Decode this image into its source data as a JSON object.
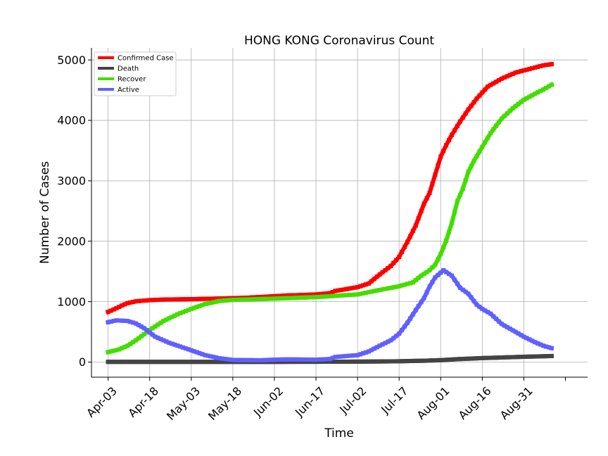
{
  "chart_data": {
    "type": "line",
    "title": "HONG KONG Coronavirus Count",
    "xlabel": "Time",
    "ylabel": "Number of Cases",
    "xlim": [
      "2020-03-28",
      "2020-09-23"
    ],
    "ylim": [
      -250,
      5200
    ],
    "grid": true,
    "legend_position": "top-left",
    "x_ticks": [
      "Apr-03",
      "Apr-18",
      "May-03",
      "May-18",
      "Jun-02",
      "Jun-17",
      "Jul-02",
      "Jul-17",
      "Aug-01",
      "Aug-16",
      "Aug-31"
    ],
    "y_ticks": [
      0,
      1000,
      2000,
      3000,
      4000,
      5000
    ],
    "series": [
      {
        "name": "Confirmed Case",
        "color": "#ff0000",
        "points": [
          [
            "2020-04-03",
            830
          ],
          [
            "2020-04-05",
            870
          ],
          [
            "2020-04-08",
            935
          ],
          [
            "2020-04-10",
            975
          ],
          [
            "2020-04-13",
            1005
          ],
          [
            "2020-04-18",
            1025
          ],
          [
            "2020-04-23",
            1035
          ],
          [
            "2020-05-03",
            1042
          ],
          [
            "2020-05-13",
            1052
          ],
          [
            "2020-05-23",
            1065
          ],
          [
            "2020-06-02",
            1090
          ],
          [
            "2020-06-07",
            1103
          ],
          [
            "2020-06-12",
            1110
          ],
          [
            "2020-06-17",
            1120
          ],
          [
            "2020-06-22",
            1140
          ],
          [
            "2020-06-24",
            1178
          ],
          [
            "2020-06-27",
            1200
          ],
          [
            "2020-07-02",
            1240
          ],
          [
            "2020-07-06",
            1300
          ],
          [
            "2020-07-10",
            1450
          ],
          [
            "2020-07-14",
            1590
          ],
          [
            "2020-07-17",
            1740
          ],
          [
            "2020-07-20",
            1990
          ],
          [
            "2020-07-23",
            2260
          ],
          [
            "2020-07-26",
            2620
          ],
          [
            "2020-07-28",
            2800
          ],
          [
            "2020-07-30",
            3100
          ],
          [
            "2020-08-01",
            3400
          ],
          [
            "2020-08-03",
            3590
          ],
          [
            "2020-08-05",
            3760
          ],
          [
            "2020-08-08",
            3980
          ],
          [
            "2020-08-11",
            4180
          ],
          [
            "2020-08-14",
            4360
          ],
          [
            "2020-08-18",
            4560
          ],
          [
            "2020-08-23",
            4690
          ],
          [
            "2020-08-28",
            4790
          ],
          [
            "2020-09-02",
            4850
          ],
          [
            "2020-09-07",
            4910
          ],
          [
            "2020-09-10",
            4930
          ]
        ]
      },
      {
        "name": "Death",
        "color": "#444444",
        "points": [
          [
            "2020-04-03",
            4
          ],
          [
            "2020-05-03",
            4
          ],
          [
            "2020-06-02",
            4
          ],
          [
            "2020-07-02",
            7
          ],
          [
            "2020-07-17",
            13
          ],
          [
            "2020-07-27",
            24
          ],
          [
            "2020-08-01",
            32
          ],
          [
            "2020-08-07",
            48
          ],
          [
            "2020-08-16",
            66
          ],
          [
            "2020-08-23",
            76
          ],
          [
            "2020-08-31",
            88
          ],
          [
            "2020-09-10",
            100
          ]
        ]
      },
      {
        "name": "Recover",
        "color": "#44dd00",
        "points": [
          [
            "2020-04-03",
            165
          ],
          [
            "2020-04-07",
            210
          ],
          [
            "2020-04-10",
            270
          ],
          [
            "2020-04-13",
            360
          ],
          [
            "2020-04-18",
            530
          ],
          [
            "2020-04-23",
            680
          ],
          [
            "2020-04-28",
            790
          ],
          [
            "2020-05-03",
            880
          ],
          [
            "2020-05-08",
            960
          ],
          [
            "2020-05-13",
            1010
          ],
          [
            "2020-05-18",
            1030
          ],
          [
            "2020-06-02",
            1050
          ],
          [
            "2020-06-17",
            1075
          ],
          [
            "2020-07-02",
            1120
          ],
          [
            "2020-07-09",
            1185
          ],
          [
            "2020-07-17",
            1255
          ],
          [
            "2020-07-22",
            1320
          ],
          [
            "2020-07-25",
            1430
          ],
          [
            "2020-07-28",
            1520
          ],
          [
            "2020-07-30",
            1610
          ],
          [
            "2020-08-01",
            1790
          ],
          [
            "2020-08-03",
            2010
          ],
          [
            "2020-08-05",
            2300
          ],
          [
            "2020-08-07",
            2660
          ],
          [
            "2020-08-09",
            2870
          ],
          [
            "2020-08-11",
            3150
          ],
          [
            "2020-08-13",
            3330
          ],
          [
            "2020-08-16",
            3560
          ],
          [
            "2020-08-19",
            3790
          ],
          [
            "2020-08-23",
            4030
          ],
          [
            "2020-08-27",
            4200
          ],
          [
            "2020-08-31",
            4340
          ],
          [
            "2020-09-04",
            4440
          ],
          [
            "2020-09-07",
            4510
          ],
          [
            "2020-09-10",
            4590
          ]
        ]
      },
      {
        "name": "Active",
        "color": "#6060ff",
        "points": [
          [
            "2020-04-03",
            660
          ],
          [
            "2020-04-06",
            690
          ],
          [
            "2020-04-10",
            680
          ],
          [
            "2020-04-13",
            640
          ],
          [
            "2020-04-16",
            560
          ],
          [
            "2020-04-20",
            420
          ],
          [
            "2020-04-25",
            320
          ],
          [
            "2020-05-03",
            195
          ],
          [
            "2020-05-08",
            115
          ],
          [
            "2020-05-13",
            65
          ],
          [
            "2020-05-18",
            35
          ],
          [
            "2020-05-28",
            30
          ],
          [
            "2020-06-02",
            40
          ],
          [
            "2020-06-07",
            45
          ],
          [
            "2020-06-17",
            40
          ],
          [
            "2020-06-22",
            50
          ],
          [
            "2020-06-24",
            85
          ],
          [
            "2020-07-02",
            115
          ],
          [
            "2020-07-06",
            175
          ],
          [
            "2020-07-10",
            270
          ],
          [
            "2020-07-14",
            360
          ],
          [
            "2020-07-17",
            470
          ],
          [
            "2020-07-20",
            650
          ],
          [
            "2020-07-23",
            860
          ],
          [
            "2020-07-26",
            1060
          ],
          [
            "2020-07-28",
            1250
          ],
          [
            "2020-07-30",
            1400
          ],
          [
            "2020-08-02",
            1520
          ],
          [
            "2020-08-05",
            1430
          ],
          [
            "2020-08-08",
            1230
          ],
          [
            "2020-08-11",
            1130
          ],
          [
            "2020-08-14",
            950
          ],
          [
            "2020-08-16",
            880
          ],
          [
            "2020-08-19",
            800
          ],
          [
            "2020-08-23",
            630
          ],
          [
            "2020-08-28",
            500
          ],
          [
            "2020-08-31",
            420
          ],
          [
            "2020-09-04",
            330
          ],
          [
            "2020-09-07",
            270
          ],
          [
            "2020-09-10",
            230
          ]
        ]
      }
    ]
  }
}
